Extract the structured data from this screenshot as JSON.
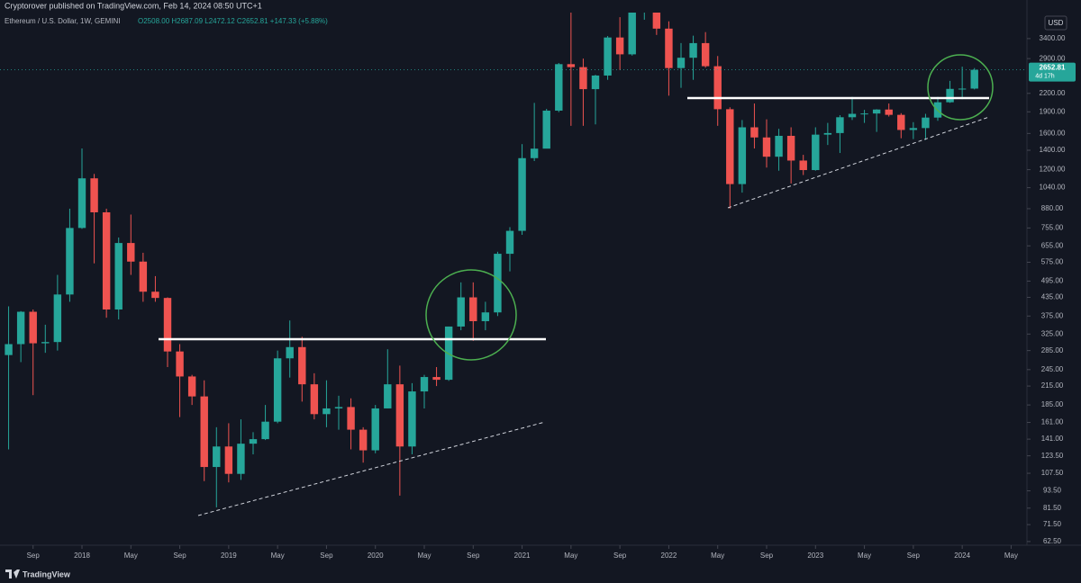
{
  "header": {
    "published": "Cryptorover published on TradingView.com, Feb 14, 2024 08:50 UTC+1",
    "symbol": "Ethereum / U.S. Dollar, 1W, GEMINI",
    "ohlc": "O2508.00 H2687.09 L2472.12 C2652.81 +147.33 (+5.88%)",
    "currency": "USD",
    "countdown": "4d 17h",
    "brand": "TradingView"
  },
  "chart_data": {
    "type": "candlestick",
    "log_scale": true,
    "grid": false,
    "up_color": "#26a69a",
    "down_color": "#ef5350",
    "x": [
      "2017-07",
      "2017-08",
      "2017-09",
      "2017-10",
      "2017-11",
      "2017-12",
      "2018-01",
      "2018-02",
      "2018-03",
      "2018-04",
      "2018-05",
      "2018-06",
      "2018-07",
      "2018-08",
      "2018-09",
      "2018-10",
      "2018-11",
      "2018-12",
      "2019-01",
      "2019-02",
      "2019-03",
      "2019-04",
      "2019-05",
      "2019-06",
      "2019-07",
      "2019-08",
      "2019-09",
      "2019-10",
      "2019-11",
      "2019-12",
      "2020-01",
      "2020-02",
      "2020-03",
      "2020-04",
      "2020-05",
      "2020-06",
      "2020-07",
      "2020-08",
      "2020-09",
      "2020-10",
      "2020-11",
      "2020-12",
      "2021-01",
      "2021-02",
      "2021-03",
      "2021-04",
      "2021-05",
      "2021-06",
      "2021-07",
      "2021-08",
      "2021-09",
      "2021-10",
      "2021-11",
      "2021-12",
      "2022-01",
      "2022-02",
      "2022-03",
      "2022-04",
      "2022-05",
      "2022-06",
      "2022-07",
      "2022-08",
      "2022-09",
      "2022-10",
      "2022-11",
      "2022-12",
      "2023-01",
      "2023-02",
      "2023-03",
      "2023-04",
      "2023-05",
      "2023-06",
      "2023-07",
      "2023-08",
      "2023-09",
      "2023-10",
      "2023-11",
      "2023-12",
      "2024-01",
      "2024-02"
    ],
    "open": [
      275,
      300,
      388,
      302,
      305,
      445,
      755,
      1120,
      855,
      395,
      670,
      578,
      455,
      433,
      283,
      232,
      198,
      113,
      133,
      107,
      136,
      141,
      162,
      268,
      293,
      218,
      172,
      180,
      182,
      152,
      129,
      180,
      218,
      133,
      206,
      231,
      226,
      345,
      435,
      360,
      386,
      615,
      738,
      1315,
      1418,
      1918,
      2775,
      2710,
      2275,
      2535,
      3430,
      3000,
      4290,
      4630,
      3680,
      2690,
      2920,
      3280,
      2730,
      1940,
      1070,
      1680,
      1550,
      1330,
      1570,
      1290,
      1196,
      1585,
      1605,
      1820,
      1870,
      1875,
      1935,
      1855,
      1645,
      1670,
      1815,
      2050,
      2280,
      2285
    ],
    "high": [
      405,
      390,
      395,
      350,
      520,
      880,
      1420,
      1160,
      880,
      700,
      840,
      620,
      515,
      435,
      300,
      235,
      225,
      155,
      160,
      165,
      149,
      185,
      285,
      362,
      318,
      238,
      225,
      199,
      195,
      155,
      185,
      288,
      253,
      220,
      235,
      250,
      345,
      490,
      490,
      420,
      625,
      760,
      1470,
      2040,
      1945,
      2800,
      4380,
      2900,
      2550,
      3470,
      4030,
      4460,
      4870,
      4780,
      3900,
      3280,
      3480,
      3580,
      2960,
      1970,
      1780,
      2030,
      1790,
      1660,
      1680,
      1350,
      1680,
      1740,
      1850,
      2140,
      1930,
      1940,
      2030,
      1880,
      1750,
      1870,
      2140,
      2430,
      2720,
      2690
    ],
    "low": [
      130,
      260,
      200,
      280,
      285,
      420,
      750,
      570,
      370,
      365,
      520,
      420,
      420,
      250,
      168,
      185,
      101,
      82,
      100,
      102,
      125,
      140,
      160,
      230,
      190,
      165,
      155,
      152,
      130,
      117,
      126,
      180,
      90,
      125,
      180,
      215,
      224,
      335,
      308,
      335,
      375,
      535,
      715,
      1285,
      1440,
      1895,
      1700,
      1700,
      1720,
      2450,
      2650,
      2970,
      3950,
      3500,
      2160,
      2300,
      2450,
      2700,
      1700,
      880,
      1000,
      1420,
      1220,
      1190,
      1075,
      1150,
      1190,
      1460,
      1370,
      1780,
      1740,
      1620,
      1830,
      1540,
      1530,
      1520,
      1770,
      2040,
      2100,
      2270
    ],
    "close": [
      300,
      388,
      302,
      305,
      445,
      755,
      1120,
      855,
      395,
      670,
      578,
      455,
      433,
      283,
      232,
      198,
      113,
      133,
      107,
      136,
      141,
      162,
      268,
      293,
      218,
      172,
      180,
      182,
      152,
      129,
      180,
      218,
      133,
      206,
      231,
      226,
      345,
      435,
      360,
      386,
      615,
      738,
      1315,
      1418,
      1918,
      2775,
      2710,
      2275,
      2535,
      3430,
      3000,
      4290,
      4630,
      3680,
      2690,
      2920,
      3280,
      2730,
      1940,
      1070,
      1680,
      1550,
      1330,
      1570,
      1290,
      1196,
      1585,
      1605,
      1820,
      1870,
      1875,
      1935,
      1855,
      1645,
      1670,
      1815,
      2050,
      2280,
      2285,
      2652.81
    ],
    "xlim": [
      "2017-06",
      "2024-06"
    ],
    "xticks": [
      {
        "value": "2017-09",
        "label": "Sep"
      },
      {
        "value": "2018-01",
        "label": "2018"
      },
      {
        "value": "2018-05",
        "label": "May"
      },
      {
        "value": "2018-09",
        "label": "Sep"
      },
      {
        "value": "2019-01",
        "label": "2019"
      },
      {
        "value": "2019-05",
        "label": "May"
      },
      {
        "value": "2019-09",
        "label": "Sep"
      },
      {
        "value": "2020-01",
        "label": "2020"
      },
      {
        "value": "2020-05",
        "label": "May"
      },
      {
        "value": "2020-09",
        "label": "Sep"
      },
      {
        "value": "2021-01",
        "label": "2021"
      },
      {
        "value": "2021-05",
        "label": "May"
      },
      {
        "value": "2021-09",
        "label": "Sep"
      },
      {
        "value": "2022-01",
        "label": "2022"
      },
      {
        "value": "2022-05",
        "label": "May"
      },
      {
        "value": "2022-09",
        "label": "Sep"
      },
      {
        "value": "2023-01",
        "label": "2023"
      },
      {
        "value": "2023-05",
        "label": "May"
      },
      {
        "value": "2023-09",
        "label": "Sep"
      },
      {
        "value": "2024-01",
        "label": "2024"
      },
      {
        "value": "2024-05",
        "label": "May"
      }
    ],
    "ylim": [
      60.7,
      4180
    ],
    "yticks": [
      {
        "value": 3400,
        "label": "3400.00"
      },
      {
        "value": 2900,
        "label": "2900.00"
      },
      {
        "value": 2200,
        "label": "2200.00"
      },
      {
        "value": 1900,
        "label": "1900.00"
      },
      {
        "value": 1600,
        "label": "1600.00"
      },
      {
        "value": 1400,
        "label": "1400.00"
      },
      {
        "value": 1200,
        "label": "1200.00"
      },
      {
        "value": 1040,
        "label": "1040.00"
      },
      {
        "value": 880,
        "label": "880.00"
      },
      {
        "value": 755,
        "label": "755.00"
      },
      {
        "value": 655,
        "label": "655.00"
      },
      {
        "value": 575,
        "label": "575.00"
      },
      {
        "value": 495,
        "label": "495.00"
      },
      {
        "value": 435,
        "label": "435.00"
      },
      {
        "value": 375,
        "label": "375.00"
      },
      {
        "value": 325,
        "label": "325.00"
      },
      {
        "value": 285,
        "label": "285.00"
      },
      {
        "value": 245,
        "label": "245.00"
      },
      {
        "value": 215,
        "label": "215.00"
      },
      {
        "value": 185,
        "label": "185.00"
      },
      {
        "value": 161,
        "label": "161.00"
      },
      {
        "value": 141,
        "label": "141.00"
      },
      {
        "value": 123.5,
        "label": "123.50"
      },
      {
        "value": 107.5,
        "label": "107.50"
      },
      {
        "value": 93.5,
        "label": "93.50"
      },
      {
        "value": 81.5,
        "label": "81.50"
      },
      {
        "value": 71.5,
        "label": "71.50"
      },
      {
        "value": 62.5,
        "label": "62.50"
      }
    ]
  }
}
